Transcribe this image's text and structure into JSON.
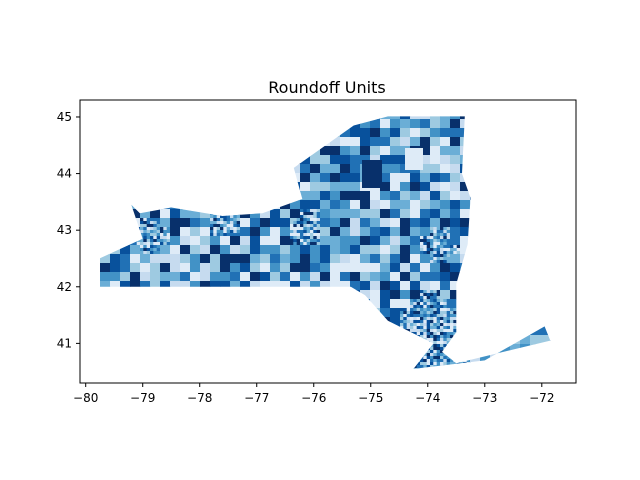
{
  "chart_data": {
    "type": "choropleth",
    "title": "Roundoff Units",
    "xlabel": "",
    "ylabel": "",
    "xlim": [
      -80.1,
      -71.4
    ],
    "ylim": [
      40.3,
      45.3
    ],
    "x_ticks": [
      -80,
      -79,
      -78,
      -77,
      -76,
      -75,
      -74,
      -73,
      -72
    ],
    "y_ticks": [
      41,
      42,
      43,
      44,
      45
    ],
    "x_tick_labels": [
      "−80",
      "−79",
      "−78",
      "−77",
      "−76",
      "−75",
      "−74",
      "−73",
      "−72"
    ],
    "y_tick_labels": [
      "41",
      "42",
      "43",
      "44",
      "45"
    ],
    "region": "New York State census units",
    "colormap": "Blues",
    "palette": [
      "#deebf7",
      "#c6dbef",
      "#9ecae1",
      "#6baed6",
      "#4292c6",
      "#2171b5",
      "#08519c",
      "#08306b"
    ],
    "outline": [
      [
        -79.76,
        42.0
      ],
      [
        -75.35,
        42.0
      ],
      [
        -75.1,
        41.85
      ],
      [
        -74.7,
        41.4
      ],
      [
        -73.9,
        41.0
      ],
      [
        -74.25,
        40.55
      ],
      [
        -73.0,
        40.7
      ],
      [
        -71.95,
        41.3
      ],
      [
        -71.85,
        41.05
      ],
      [
        -73.5,
        40.65
      ],
      [
        -73.75,
        40.85
      ],
      [
        -73.5,
        41.2
      ],
      [
        -73.5,
        42.05
      ],
      [
        -73.3,
        42.75
      ],
      [
        -73.25,
        43.57
      ],
      [
        -73.4,
        44.0
      ],
      [
        -73.35,
        45.01
      ],
      [
        -74.7,
        45.01
      ],
      [
        -75.3,
        44.85
      ],
      [
        -76.0,
        44.35
      ],
      [
        -76.35,
        44.1
      ],
      [
        -76.2,
        43.55
      ],
      [
        -76.9,
        43.3
      ],
      [
        -77.6,
        43.25
      ],
      [
        -78.5,
        43.4
      ],
      [
        -79.05,
        43.3
      ],
      [
        -79.2,
        43.45
      ],
      [
        -79.0,
        42.85
      ],
      [
        -79.76,
        42.5
      ]
    ],
    "grid": false,
    "legend": "none"
  }
}
